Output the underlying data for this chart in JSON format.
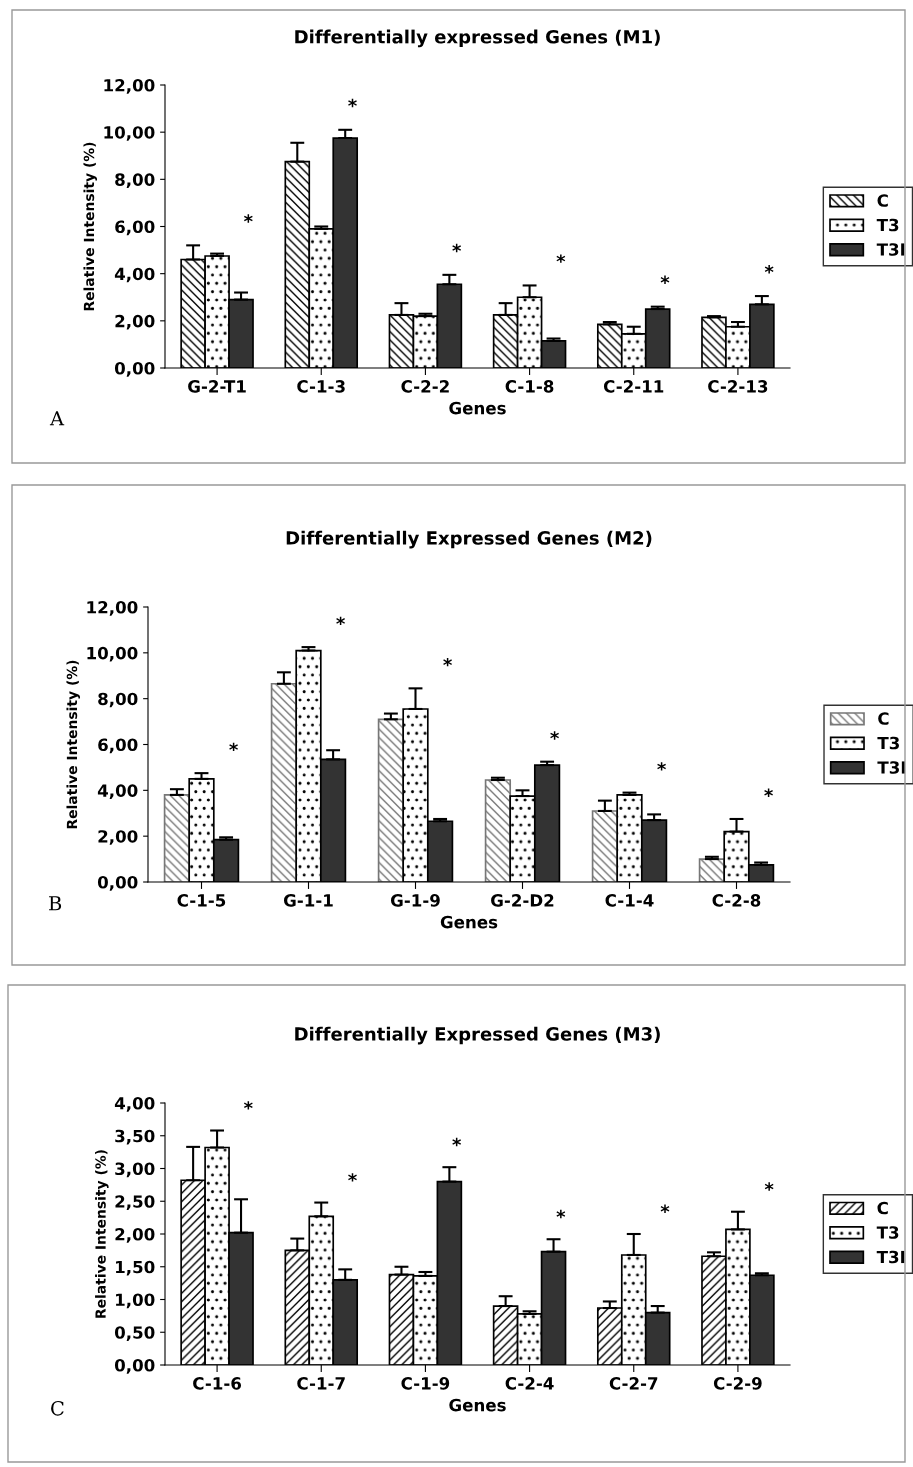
{
  "chart_data": [
    {
      "type": "bar",
      "title": "Differentially expressed Genes (M1)",
      "xlabel": "Genes",
      "ylabel": "Relative Intensity (%)",
      "categories": [
        "G-2-T1",
        "C-1-3",
        "C-2-2",
        "C-1-8",
        "C-2-11",
        "C-2-13"
      ],
      "series": [
        {
          "name": "C",
          "color": "#000000",
          "values": [
            4.6,
            8.75,
            2.25,
            2.25,
            1.85,
            2.15
          ],
          "errors": [
            [
              4.6,
              5.2
            ],
            [
              8.75,
              9.55
            ],
            [
              2.25,
              2.75
            ],
            [
              2.25,
              2.75
            ],
            [
              1.85,
              1.95
            ],
            [
              2.15,
              2.2
            ]
          ]
        },
        {
          "name": "T3",
          "color": "#000000",
          "values": [
            4.75,
            5.9,
            2.2,
            3.0,
            1.45,
            1.75
          ],
          "errors": [
            [
              4.75,
              4.85
            ],
            [
              5.9,
              6.0
            ],
            [
              2.2,
              2.3
            ],
            [
              3.0,
              3.5
            ],
            [
              1.45,
              1.75
            ],
            [
              1.75,
              1.95
            ]
          ]
        },
        {
          "name": "T3I",
          "color": "#333333",
          "values": [
            2.9,
            9.75,
            3.55,
            1.15,
            2.5,
            2.7
          ],
          "errors": [
            [
              2.9,
              3.2
            ],
            [
              9.75,
              10.1
            ],
            [
              3.55,
              3.95
            ],
            [
              1.15,
              1.25
            ],
            [
              2.5,
              2.6
            ],
            [
              2.7,
              3.05
            ]
          ]
        }
      ],
      "ylim": [
        0,
        12
      ],
      "yticks": [
        {
          "value": 0,
          "label": "0,00"
        },
        {
          "value": 2,
          "label": "2,00"
        },
        {
          "value": 4,
          "label": "4,00"
        },
        {
          "value": 6,
          "label": "6,00"
        },
        {
          "value": 8,
          "label": "8,00"
        },
        {
          "value": 10,
          "label": "10,00"
        },
        {
          "value": 12,
          "label": "12,00"
        }
      ],
      "legend": "right",
      "grid": false,
      "annotations": [
        "*",
        "*",
        "*",
        "*",
        "*",
        "*",
        "A"
      ]
    },
    {
      "type": "bar",
      "title": "Differentially Expressed Genes (M2)",
      "xlabel": "Genes",
      "ylabel": "Relative Intensity (%)",
      "categories": [
        "C-1-5",
        "G-1-1",
        "G-1-9",
        "G-2-D2",
        "C-1-4",
        "C-2-8"
      ],
      "series": [
        {
          "name": "C",
          "color": "#777777",
          "values": [
            3.8,
            8.65,
            7.1,
            4.45,
            3.1,
            1.0
          ],
          "errors": [
            [
              3.8,
              4.05
            ],
            [
              8.65,
              9.15
            ],
            [
              7.1,
              7.35
            ],
            [
              4.45,
              4.55
            ],
            [
              3.1,
              3.55
            ],
            [
              1.0,
              1.1
            ]
          ]
        },
        {
          "name": "T3",
          "color": "#000000",
          "values": [
            4.5,
            10.1,
            7.55,
            3.75,
            3.8,
            2.2
          ],
          "errors": [
            [
              4.5,
              4.75
            ],
            [
              10.1,
              10.25
            ],
            [
              7.55,
              8.45
            ],
            [
              3.75,
              4.0
            ],
            [
              3.8,
              3.9
            ],
            [
              2.2,
              2.75
            ]
          ]
        },
        {
          "name": "T3I",
          "color": "#333333",
          "values": [
            1.85,
            5.35,
            2.65,
            5.1,
            2.7,
            0.75
          ],
          "errors": [
            [
              1.85,
              1.95
            ],
            [
              5.35,
              5.75
            ],
            [
              2.65,
              2.75
            ],
            [
              5.1,
              5.25
            ],
            [
              2.7,
              2.95
            ],
            [
              0.75,
              0.85
            ]
          ]
        }
      ],
      "ylim": [
        0,
        12
      ],
      "yticks": [
        {
          "value": 0,
          "label": "0,00"
        },
        {
          "value": 2,
          "label": "2,00"
        },
        {
          "value": 4,
          "label": "4,00"
        },
        {
          "value": 6,
          "label": "6,00"
        },
        {
          "value": 8,
          "label": "8,00"
        },
        {
          "value": 10,
          "label": "10,00"
        },
        {
          "value": 12,
          "label": "12,00"
        }
      ],
      "legend": "right",
      "grid": false,
      "annotations": [
        "*",
        "*",
        "*",
        "*",
        "*",
        "*",
        "B"
      ]
    },
    {
      "type": "bar",
      "title": "Differentially Expressed Genes (M3)",
      "xlabel": "Genes",
      "ylabel": "Relative Intensity (%)",
      "categories": [
        "C-1-6",
        "C-1-7",
        "C-1-9",
        "C-2-4",
        "C-2-7",
        "C-2-9"
      ],
      "series": [
        {
          "name": "C",
          "color": "#000000",
          "values": [
            2.82,
            1.75,
            1.38,
            0.9,
            0.87,
            1.66
          ],
          "errors": [
            [
              2.82,
              3.33
            ],
            [
              1.75,
              1.93
            ],
            [
              1.38,
              1.5
            ],
            [
              0.9,
              1.05
            ],
            [
              0.87,
              0.97
            ],
            [
              1.66,
              1.72
            ]
          ]
        },
        {
          "name": "T3",
          "color": "#000000",
          "values": [
            3.32,
            2.27,
            1.36,
            0.78,
            1.68,
            2.07
          ],
          "errors": [
            [
              3.32,
              3.58
            ],
            [
              2.27,
              2.48
            ],
            [
              1.36,
              1.42
            ],
            [
              0.78,
              0.82
            ],
            [
              1.68,
              2.0
            ],
            [
              2.07,
              2.34
            ]
          ]
        },
        {
          "name": "T3I",
          "color": "#333333",
          "values": [
            2.02,
            1.3,
            2.8,
            1.73,
            0.8,
            1.37
          ],
          "errors": [
            [
              2.02,
              2.53
            ],
            [
              1.3,
              1.46
            ],
            [
              2.8,
              3.02
            ],
            [
              1.73,
              1.92
            ],
            [
              0.8,
              0.9
            ],
            [
              1.37,
              1.4
            ]
          ]
        }
      ],
      "ylim": [
        0,
        4
      ],
      "yticks": [
        {
          "value": 0,
          "label": "0,00"
        },
        {
          "value": 0.5,
          "label": "0,50"
        },
        {
          "value": 1,
          "label": "1,00"
        },
        {
          "value": 1.5,
          "label": "1,50"
        },
        {
          "value": 2,
          "label": "2,00"
        },
        {
          "value": 2.5,
          "label": "2,50"
        },
        {
          "value": 3,
          "label": "3,00"
        },
        {
          "value": 3.5,
          "label": "3,50"
        },
        {
          "value": 4,
          "label": "4,00"
        }
      ],
      "legend": "right",
      "grid": false,
      "annotations": [
        "*",
        "*",
        "*",
        "*",
        "*",
        "*",
        "C"
      ]
    }
  ]
}
